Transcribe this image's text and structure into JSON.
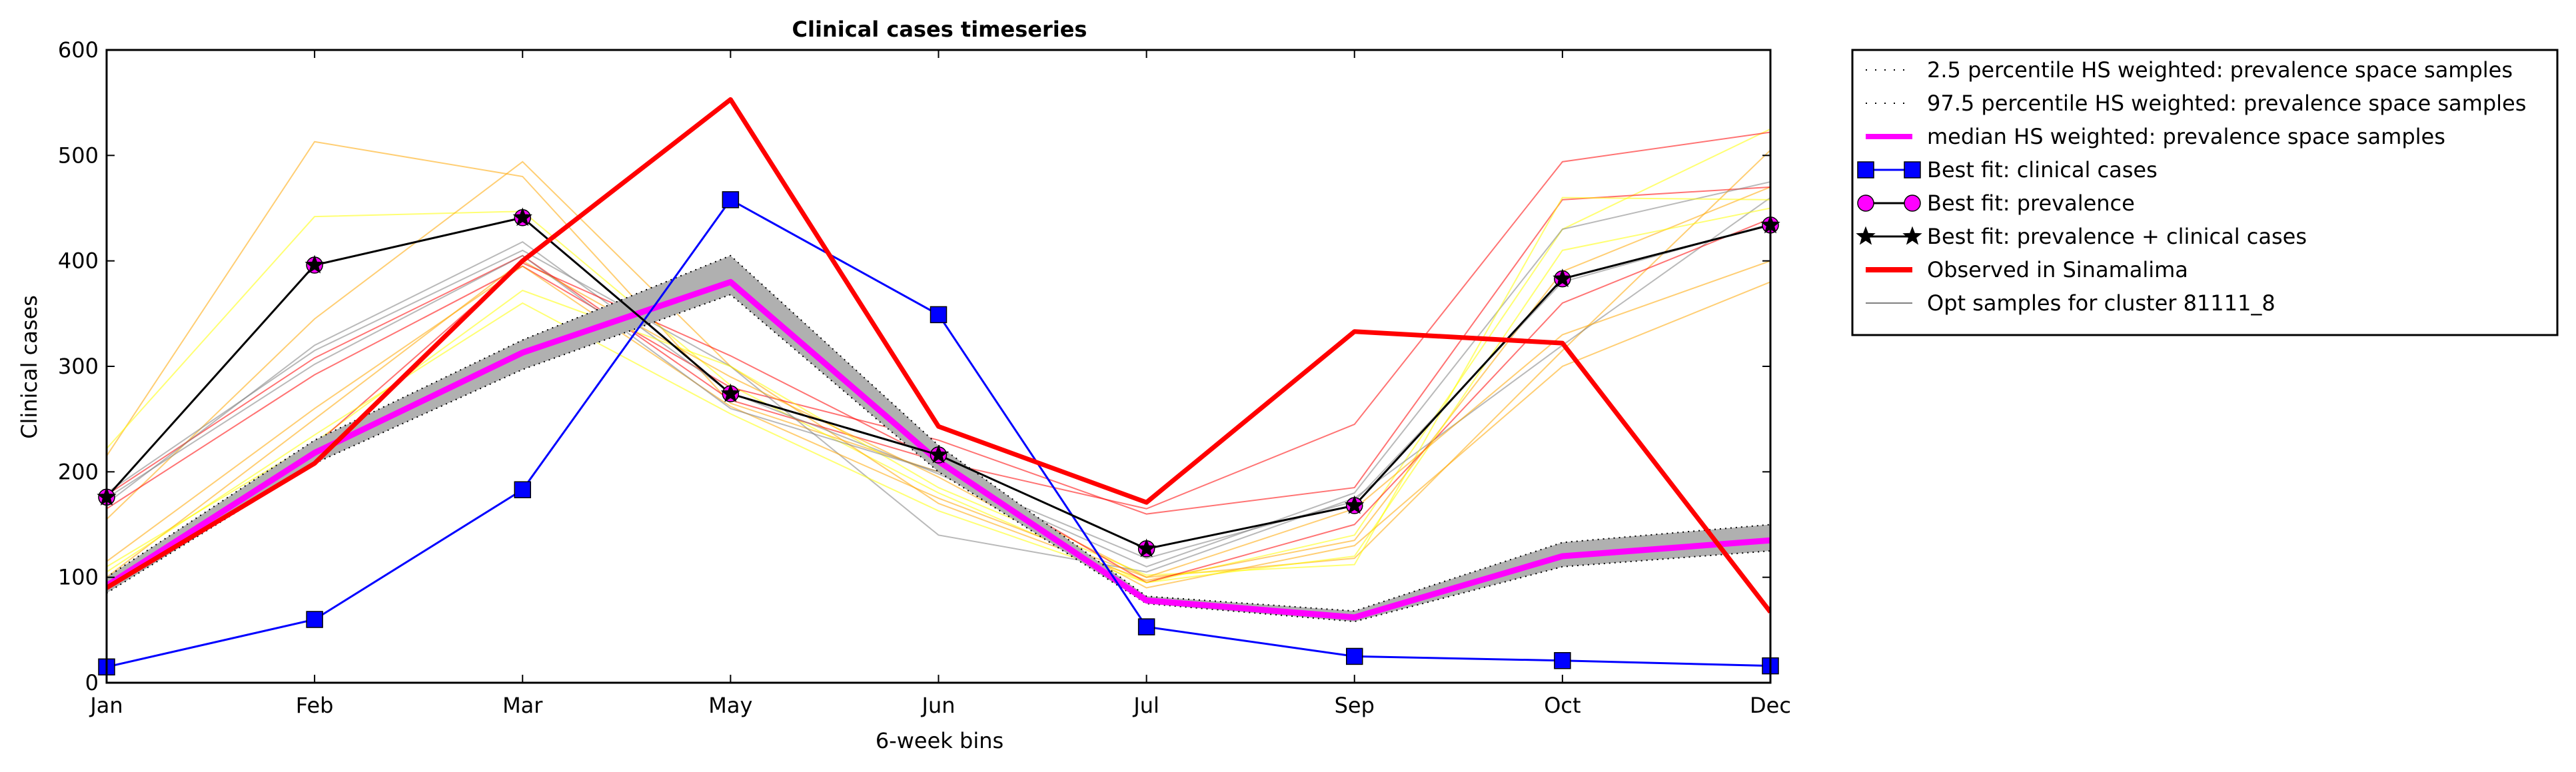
{
  "chart_data": {
    "type": "line",
    "title": "Clinical cases timeseries",
    "xlabel": "6-week bins",
    "ylabel": "Clinical cases",
    "categories": [
      "Jan",
      "Feb",
      "Mar",
      "May",
      "Jun",
      "Jul",
      "Sep",
      "Oct",
      "Dec"
    ],
    "ylim": [
      0,
      600
    ],
    "yticks": [
      0,
      100,
      200,
      300,
      400,
      500,
      600
    ],
    "grid": false,
    "legend_position": "outside right, top",
    "band": {
      "lower_name": "2.5 percentile HS weighted: prevalence space samples",
      "upper_name": "97.5 percentile HS weighted: prevalence space samples",
      "lower": [
        85,
        208,
        297,
        368,
        200,
        75,
        58,
        110,
        125
      ],
      "upper": [
        100,
        230,
        325,
        405,
        225,
        82,
        68,
        133,
        150
      ],
      "fill_color": "#b0b0b0"
    },
    "series": [
      {
        "name": "median HS weighted: prevalence space samples",
        "color": "#ff00ff",
        "values": [
          92,
          218,
          313,
          380,
          210,
          78,
          62,
          120,
          135
        ]
      },
      {
        "name": "Best fit: clinical cases",
        "color": "#0000ff",
        "marker": "square",
        "values": [
          15,
          60,
          183,
          458,
          349,
          53,
          25,
          21,
          16
        ]
      },
      {
        "name": "Best fit: prevalence",
        "color": "#ff00ff",
        "marker": "circle",
        "values": [
          176,
          396,
          441,
          274,
          216,
          127,
          168,
          383,
          434
        ]
      },
      {
        "name": "Best fit: prevalence + clinical cases",
        "color": "#000000",
        "marker": "star",
        "values": [
          176,
          396,
          441,
          274,
          216,
          127,
          168,
          383,
          434
        ]
      },
      {
        "name": "Observed in Sinamalima",
        "color": "#ff0000",
        "values": [
          90,
          208,
          400,
          553,
          243,
          171,
          333,
          322,
          67
        ]
      }
    ],
    "opt_samples": {
      "name": "Opt samples for cluster 81111_8",
      "lines": [
        {
          "color": "#ffa500",
          "values": [
            215,
            513,
            480,
            265,
            200,
            100,
            118,
            315,
            505
          ]
        },
        {
          "color": "#ffff00",
          "values": [
            222,
            442,
            447,
            282,
            180,
            95,
            140,
            430,
            525
          ]
        },
        {
          "color": "#ffa500",
          "values": [
            155,
            345,
            494,
            300,
            170,
            97,
            135,
            390,
            470
          ]
        },
        {
          "color": "#ff0000",
          "values": [
            178,
            308,
            405,
            268,
            210,
            165,
            245,
            494,
            522
          ]
        },
        {
          "color": "#ff0000",
          "values": [
            165,
            292,
            395,
            280,
            230,
            160,
            185,
            458,
            470
          ]
        },
        {
          "color": "#808080",
          "values": [
            170,
            320,
            418,
            275,
            198,
            110,
            180,
            430,
            475
          ]
        },
        {
          "color": "#808080",
          "values": [
            180,
            315,
            410,
            300,
            140,
            105,
            175,
            320,
            460
          ]
        },
        {
          "color": "#ffff00",
          "values": [
            110,
            228,
            372,
            300,
            185,
            102,
            112,
            460,
            458
          ]
        },
        {
          "color": "#ffa500",
          "values": [
            100,
            250,
            400,
            290,
            195,
            90,
            130,
            300,
            380
          ]
        },
        {
          "color": "#ff0000",
          "values": [
            98,
            225,
            398,
            310,
            210,
            95,
            150,
            360,
            440
          ]
        },
        {
          "color": "#ffff00",
          "values": [
            105,
            235,
            360,
            255,
            163,
            95,
            120,
            410,
            450
          ]
        },
        {
          "color": "#ffa500",
          "values": [
            115,
            260,
            395,
            262,
            175,
            100,
            165,
            330,
            400
          ]
        },
        {
          "color": "#808080",
          "values": [
            175,
            302,
            405,
            260,
            200,
            118,
            172,
            380,
            435
          ]
        }
      ]
    },
    "legend": [
      {
        "label": "2.5 percentile HS weighted: prevalence space samples",
        "style": "dotted",
        "color": "#000000"
      },
      {
        "label": "97.5 percentile HS weighted: prevalence space samples",
        "style": "dotted",
        "color": "#000000"
      },
      {
        "label": "median HS weighted: prevalence space samples",
        "style": "thick",
        "color": "#ff00ff"
      },
      {
        "label": "Best fit: clinical cases",
        "style": "square",
        "color": "#0000ff"
      },
      {
        "label": "Best fit: prevalence",
        "style": "circle",
        "color": "#ff00ff"
      },
      {
        "label": "Best fit: prevalence + clinical cases",
        "style": "star",
        "color": "#000000"
      },
      {
        "label": "Observed in Sinamalima",
        "style": "thick",
        "color": "#ff0000"
      },
      {
        "label": "Opt samples for cluster 81111_8",
        "style": "thin",
        "color": "#808080"
      }
    ]
  }
}
